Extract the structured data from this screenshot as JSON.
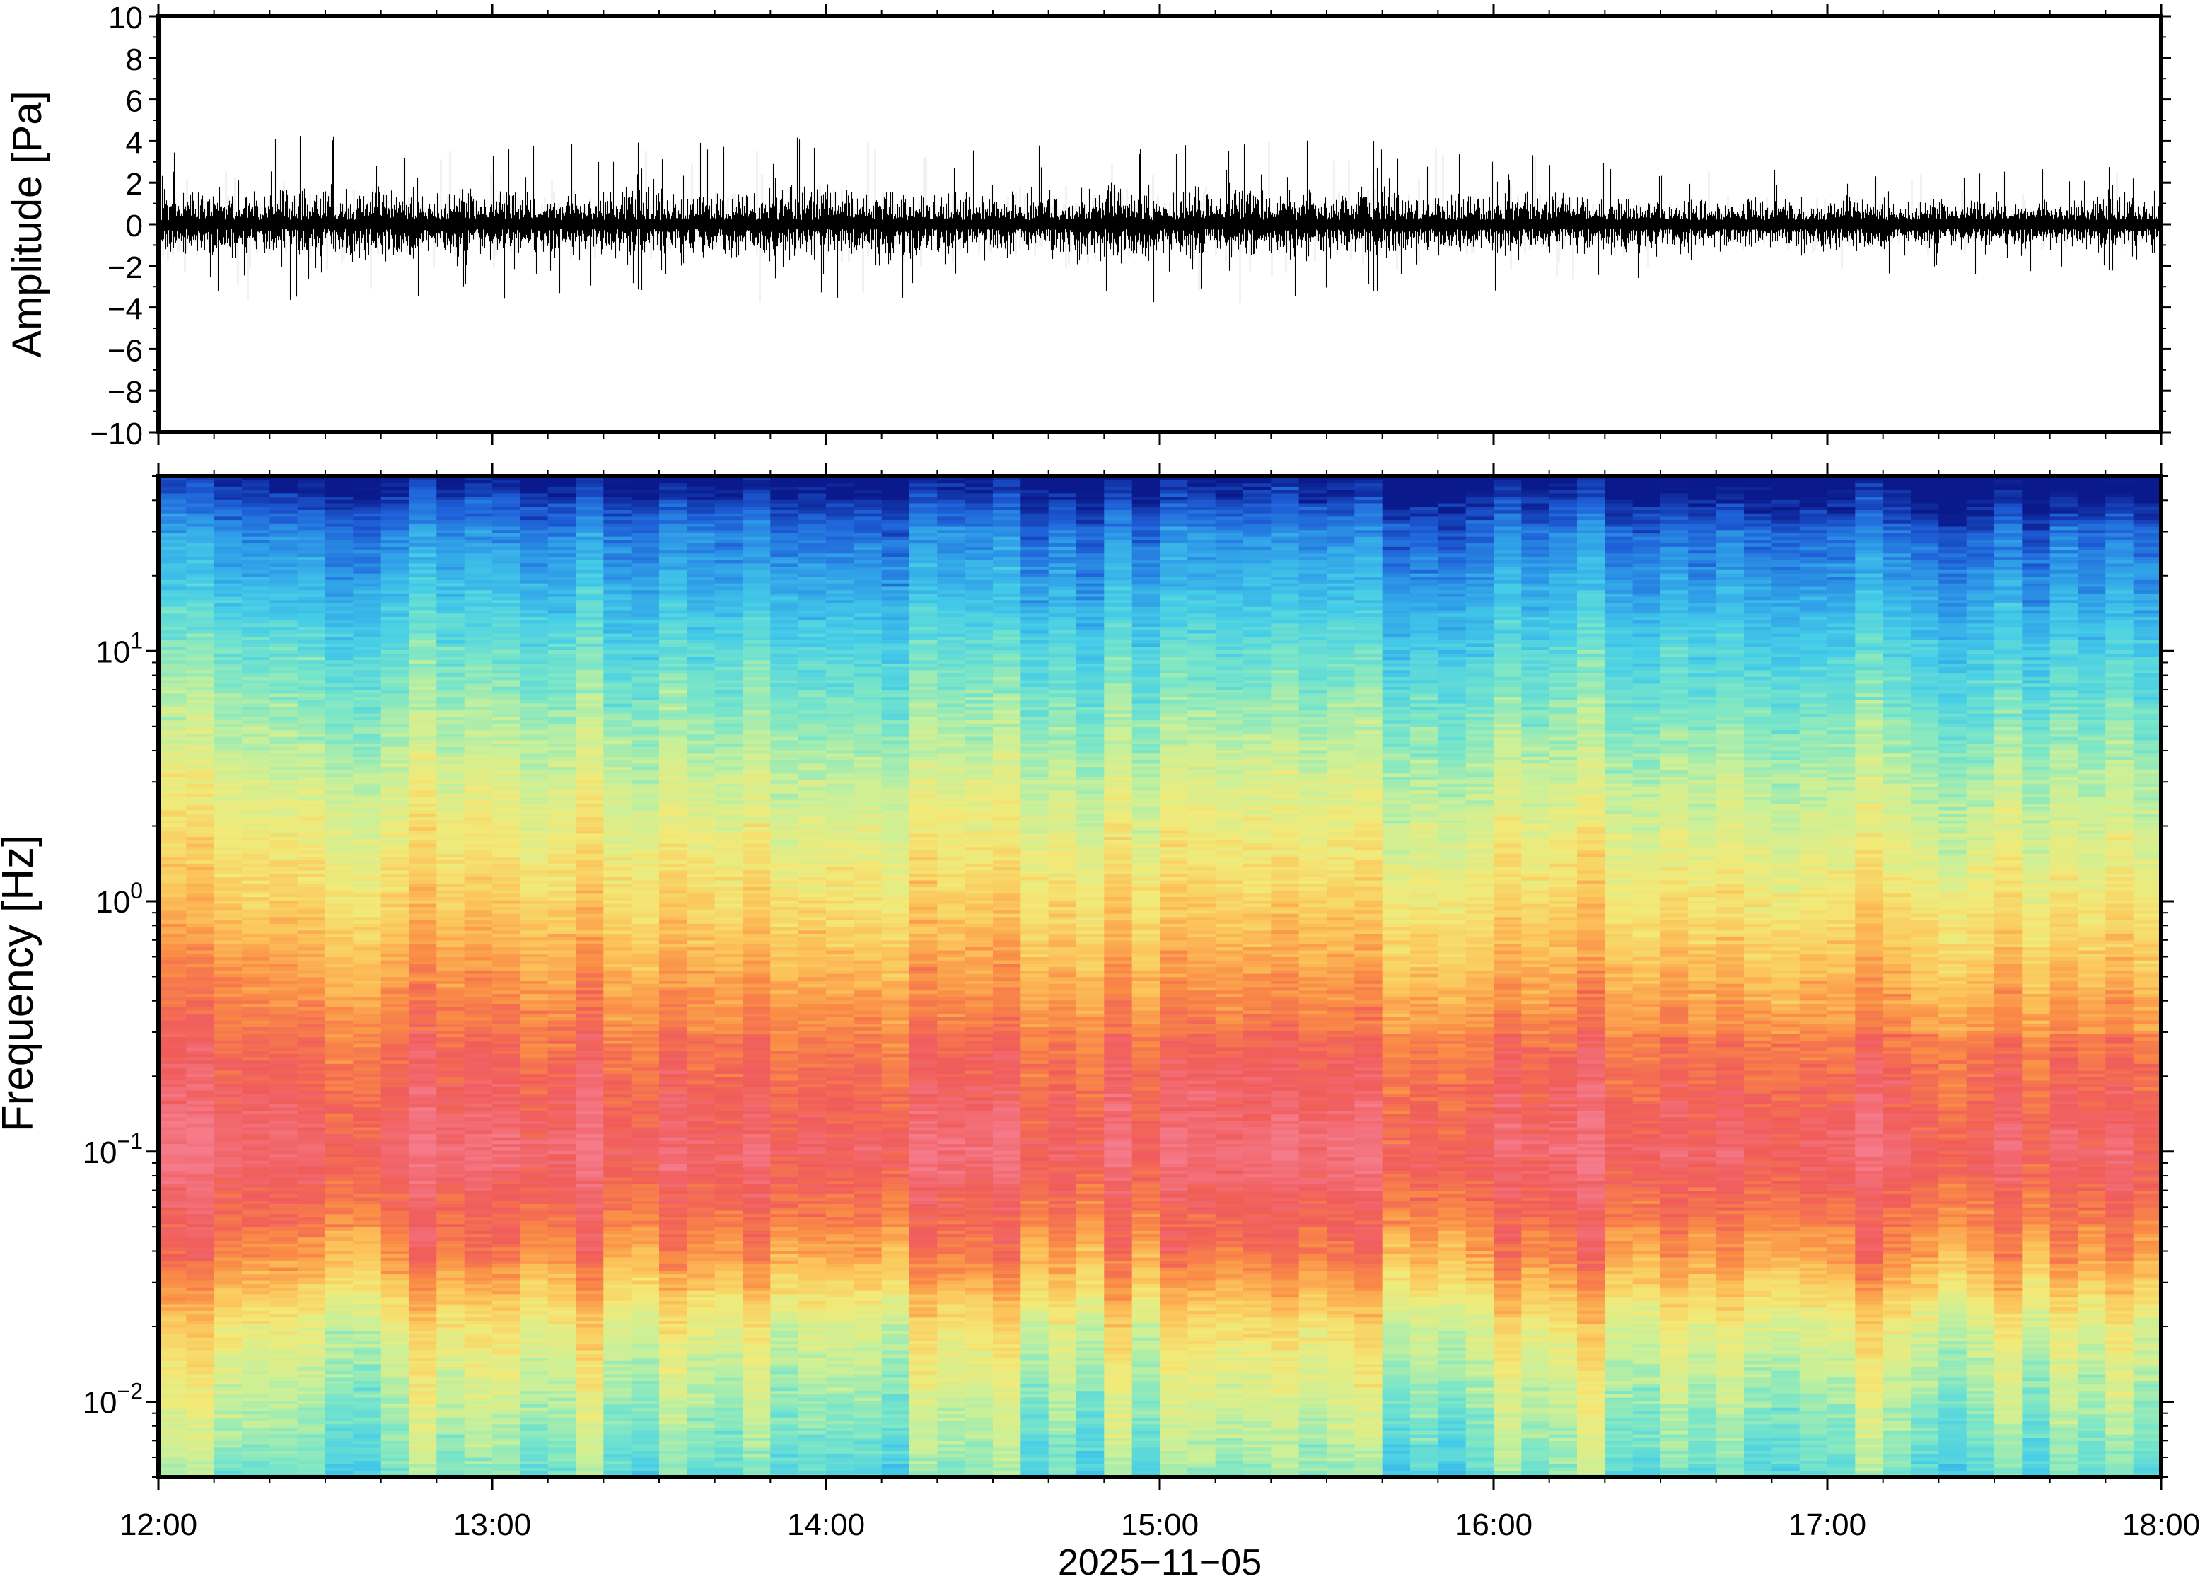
{
  "chart_data": [
    {
      "type": "line",
      "title": "",
      "ylabel": "Amplitude [Pa]",
      "xlabel": "",
      "ylim": [
        -10,
        10
      ],
      "y_ticks": [
        {
          "value": 10,
          "label": "10"
        },
        {
          "value": 8,
          "label": "8"
        },
        {
          "value": 6,
          "label": "6"
        },
        {
          "value": 4,
          "label": "4"
        },
        {
          "value": 2,
          "label": "2"
        },
        {
          "value": 0,
          "label": "0"
        },
        {
          "value": -2,
          "label": "−2"
        },
        {
          "value": -4,
          "label": "−4"
        },
        {
          "value": -6,
          "label": "−6"
        },
        {
          "value": -8,
          "label": "−8"
        },
        {
          "value": -10,
          "label": "−10"
        }
      ],
      "xlim": [
        "12:00",
        "18:00"
      ],
      "grid": false,
      "series": [
        {
          "x": [
            "12:00",
            "12:30",
            "13:00",
            "13:30",
            "14:00",
            "14:30",
            "15:00",
            "15:30",
            "16:00",
            "16:30",
            "17:00",
            "17:30",
            "18:00"
          ],
          "envelope_pa": [
            1.8,
            1.9,
            1.8,
            1.7,
            2.0,
            1.9,
            2.0,
            1.8,
            1.6,
            1.4,
            1.3,
            1.2,
            1.2
          ],
          "peak_max_pa": 4.2,
          "peak_min_pa": -3.4
        }
      ]
    },
    {
      "type": "heatmap",
      "title": "",
      "ylabel": "Frequency [Hz]",
      "xlabel": "2025−11−05",
      "y_scale": "log",
      "ylim_hz": [
        0.005,
        50
      ],
      "y_ticks": [
        {
          "value": 10,
          "base": "10",
          "exp": "1"
        },
        {
          "value": 1,
          "base": "10",
          "exp": "0"
        },
        {
          "value": 0.1,
          "base": "10",
          "exp": "−1"
        },
        {
          "value": 0.01,
          "base": "10",
          "exp": "−2"
        }
      ],
      "x_ticks": [
        "12:00",
        "13:00",
        "14:00",
        "15:00",
        "16:00",
        "17:00",
        "18:00"
      ],
      "colormap": [
        "#0a1a8c",
        "#1e5fd8",
        "#2f9fe8",
        "#45cde8",
        "#7ae6c8",
        "#c8f09a",
        "#f2ea78",
        "#fcc45a",
        "#fa8c46",
        "#f05c5a",
        "#f57a8a"
      ],
      "intensity_profile_by_frequency": [
        {
          "f_hz": 50,
          "level": 0.0
        },
        {
          "f_hz": 30,
          "level": 0.18
        },
        {
          "f_hz": 10,
          "level": 0.38
        },
        {
          "f_hz": 3,
          "level": 0.55
        },
        {
          "f_hz": 1,
          "level": 0.68
        },
        {
          "f_hz": 0.3,
          "level": 0.86
        },
        {
          "f_hz": 0.1,
          "level": 0.96
        },
        {
          "f_hz": 0.04,
          "level": 0.82
        },
        {
          "f_hz": 0.02,
          "level": 0.6
        },
        {
          "f_hz": 0.005,
          "level": 0.4
        }
      ]
    }
  ]
}
